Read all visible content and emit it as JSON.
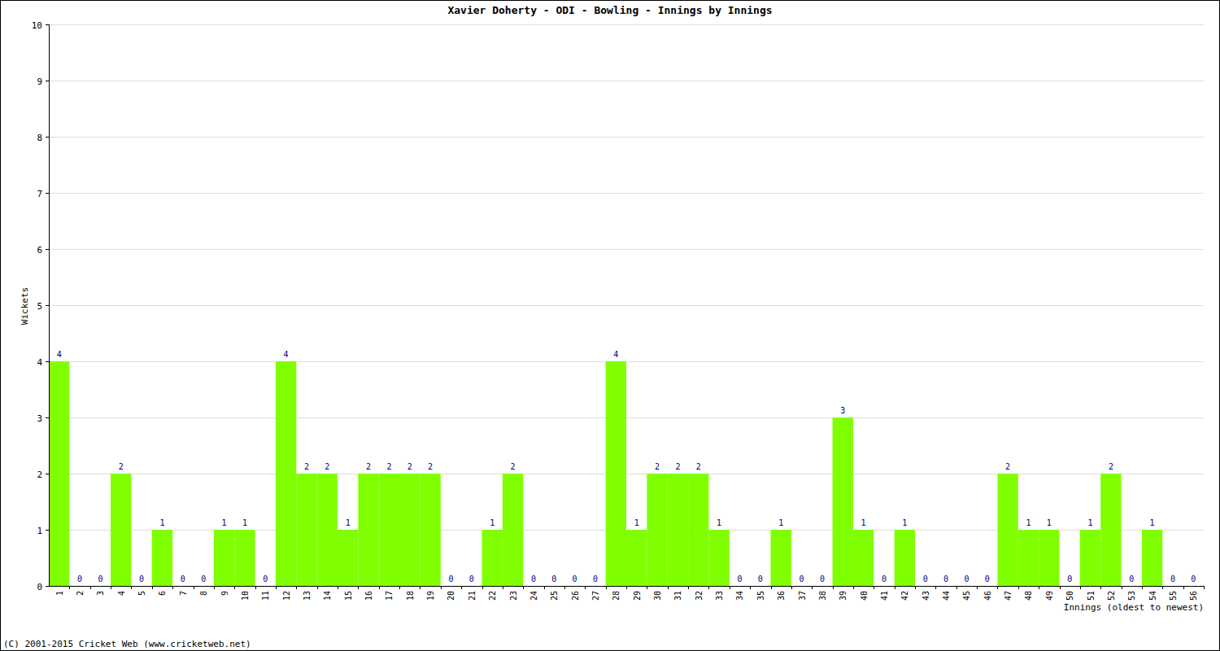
{
  "chart_data": {
    "type": "bar",
    "title": "Xavier Doherty - ODI - Bowling - Innings by Innings",
    "x_label": "Innings (oldest to newest)",
    "y_label": "Wickets",
    "annotations": [
      "(C) 2001-2015 Cricket Web (www.cricketweb.net)"
    ],
    "categories": [
      "1",
      "2",
      "3",
      "4",
      "5",
      "6",
      "7",
      "8",
      "9",
      "10",
      "11",
      "12",
      "13",
      "14",
      "15",
      "16",
      "17",
      "18",
      "19",
      "20",
      "21",
      "22",
      "23",
      "24",
      "25",
      "26",
      "27",
      "28",
      "29",
      "30",
      "31",
      "32",
      "33",
      "34",
      "35",
      "36",
      "37",
      "38",
      "39",
      "40",
      "41",
      "42",
      "43",
      "44",
      "45",
      "46",
      "47",
      "48",
      "49",
      "50",
      "51",
      "52",
      "53",
      "54",
      "55",
      "56"
    ],
    "values": [
      4,
      0,
      0,
      2,
      0,
      1,
      0,
      0,
      1,
      1,
      0,
      4,
      2,
      2,
      1,
      2,
      2,
      2,
      2,
      0,
      0,
      1,
      2,
      0,
      0,
      0,
      0,
      4,
      1,
      2,
      2,
      2,
      1,
      0,
      0,
      1,
      0,
      0,
      3,
      1,
      0,
      1,
      0,
      0,
      0,
      0,
      2,
      1,
      1,
      0,
      1,
      2,
      0,
      1,
      0,
      0
    ],
    "color": "#80ff00",
    "ylim": [
      0,
      10
    ],
    "yticks": [
      0,
      1,
      2,
      3,
      4,
      5,
      6,
      7,
      8,
      9,
      10
    ],
    "grid": true,
    "data_labels": true
  }
}
